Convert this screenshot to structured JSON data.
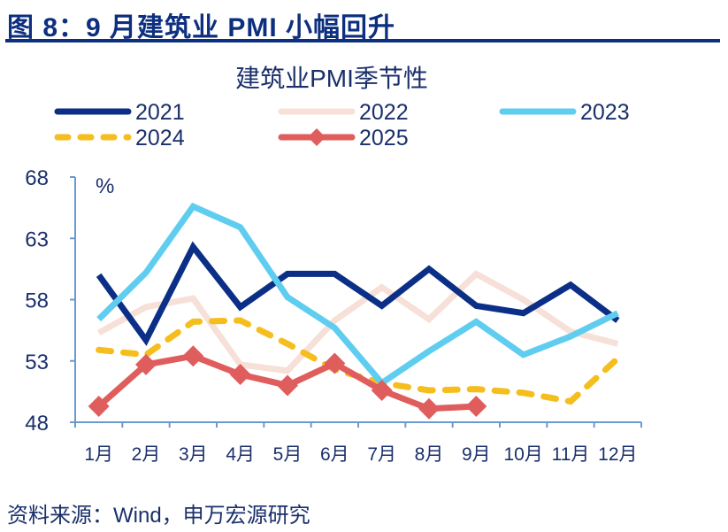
{
  "figure": {
    "title": "图 8：9 月建筑业 PMI 小幅回升",
    "source": "资料来源：Wind，申万宏源研究"
  },
  "chart_data": {
    "type": "line",
    "title": "建筑业PMI季节性",
    "ylabel": "%",
    "xlabel": "",
    "ylim": [
      48,
      68
    ],
    "yticks": [
      48,
      53,
      58,
      63,
      68
    ],
    "grid": false,
    "legend_position": "top",
    "categories": [
      "1月",
      "2月",
      "3月",
      "4月",
      "5月",
      "6月",
      "7月",
      "8月",
      "9月",
      "10月",
      "11月",
      "12月"
    ],
    "series": [
      {
        "name": "2021",
        "color": "#0b2f86",
        "style": "solid",
        "marker": "none",
        "values": [
          60.0,
          54.7,
          62.3,
          57.4,
          60.1,
          60.1,
          57.5,
          60.5,
          57.5,
          56.9,
          59.2,
          56.3
        ]
      },
      {
        "name": "2022",
        "color": "#f6e0d8",
        "style": "solid",
        "marker": "none",
        "values": [
          55.3,
          57.4,
          58.1,
          52.7,
          52.2,
          56.3,
          59.0,
          56.4,
          60.1,
          58.0,
          55.4,
          54.4
        ]
      },
      {
        "name": "2023",
        "color": "#5fcdf0",
        "style": "solid",
        "marker": "none",
        "values": [
          56.4,
          60.2,
          65.6,
          63.9,
          58.2,
          55.7,
          51.2,
          53.8,
          56.2,
          53.5,
          55.0,
          56.9
        ]
      },
      {
        "name": "2024",
        "color": "#f5be1c",
        "style": "dashed",
        "marker": "none",
        "values": [
          53.9,
          53.5,
          56.2,
          56.3,
          54.4,
          52.3,
          51.2,
          50.6,
          50.7,
          50.4,
          49.7,
          53.2
        ]
      },
      {
        "name": "2025",
        "color": "#e05d5d",
        "style": "solid",
        "marker": "diamond",
        "values": [
          49.3,
          52.7,
          53.4,
          51.9,
          51.0,
          52.8,
          50.6,
          49.1,
          49.3
        ]
      }
    ]
  }
}
